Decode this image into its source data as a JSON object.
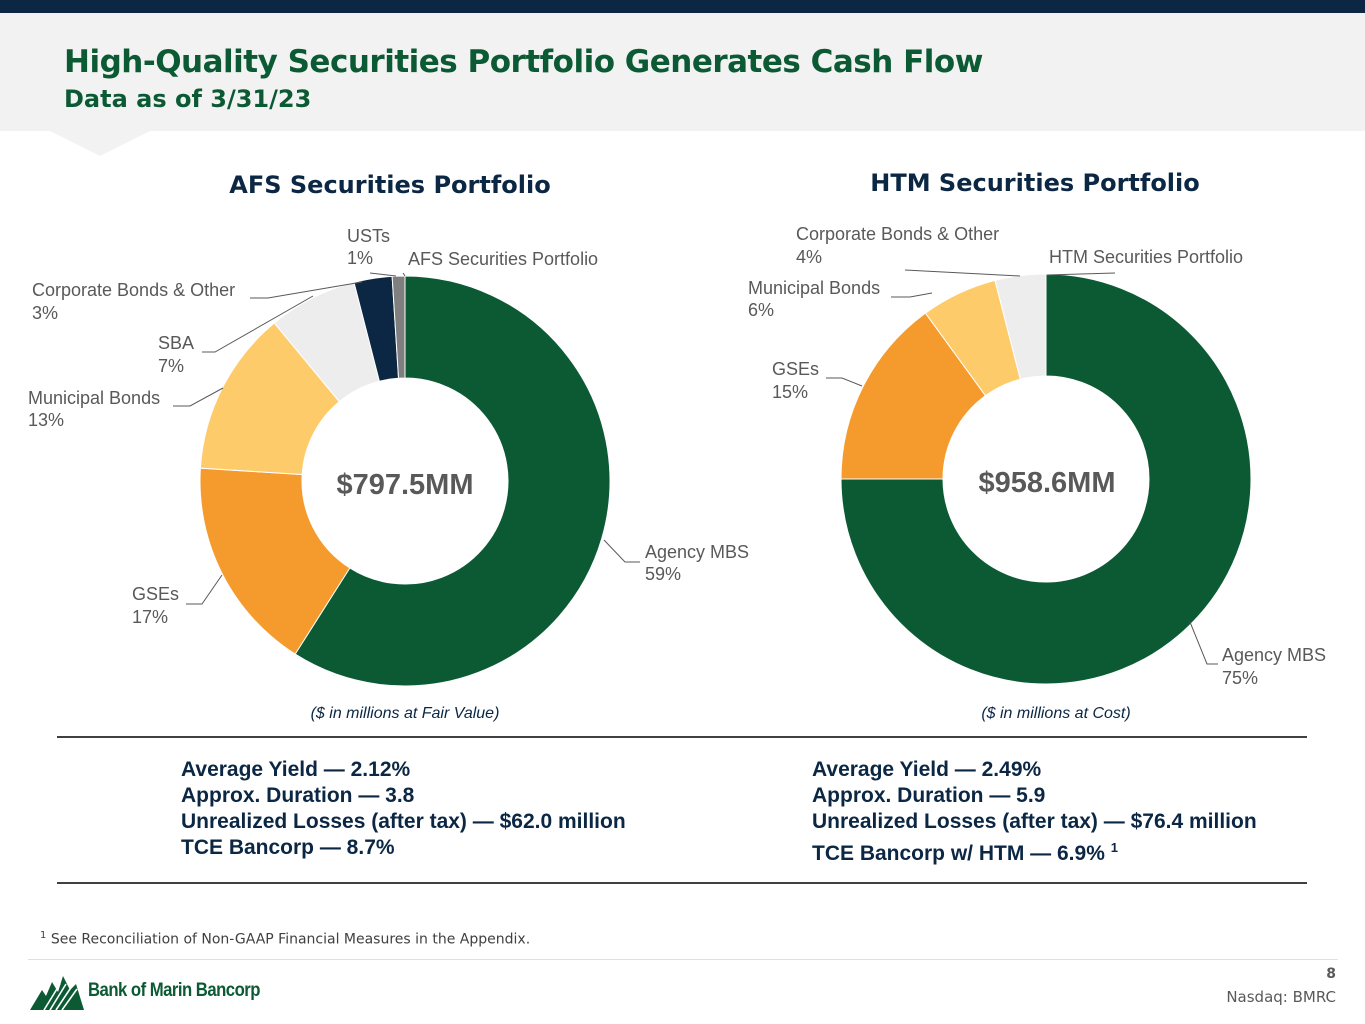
{
  "header": {
    "title": "High-Quality Securities Portfolio Generates Cash Flow",
    "subtitle": "Data as of 3/31/23"
  },
  "chart_data": [
    {
      "type": "pie",
      "title": "AFS Securities Portfolio",
      "series_label": "AFS Securities Portfolio",
      "center_label": "$797.5MM",
      "note": "($ in millions at Fair Value)",
      "categories": [
        "Agency MBS",
        "GSEs",
        "Municipal Bonds",
        "SBA",
        "Corporate Bonds & Other",
        "USTs"
      ],
      "values": [
        59,
        17,
        13,
        7,
        3,
        1
      ],
      "units": "%",
      "colors": [
        "#0b5a34",
        "#f59a2c",
        "#fecb6b",
        "#ededed",
        "#0b2744",
        "#7f7f7f"
      ]
    },
    {
      "type": "pie",
      "title": "HTM Securities Portfolio",
      "series_label": "HTM Securities Portfolio",
      "center_label": "$958.6MM",
      "note": "($ in millions at Cost)",
      "categories": [
        "Agency MBS",
        "GSEs",
        "Municipal Bonds",
        "Corporate Bonds & Other"
      ],
      "values": [
        75,
        15,
        6,
        4
      ],
      "units": "%",
      "colors": [
        "#0b5a34",
        "#f59a2c",
        "#fecb6b",
        "#ededed"
      ]
    }
  ],
  "afs_metrics": {
    "yield": "Average Yield — 2.12%",
    "duration": "Approx. Duration — 3.8",
    "losses": "Unrealized Losses (after tax) — $62.0 million",
    "tce": "TCE Bancorp — 8.7%"
  },
  "htm_metrics": {
    "yield": "Average Yield — 2.49%",
    "duration": "Approx. Duration — 5.9",
    "losses": "Unrealized Losses (after tax) — $76.4 million",
    "tce": "TCE Bancorp w/ HTM — 6.9%",
    "tce_footnote_ref": "1"
  },
  "footer": {
    "footnote_number": "1",
    "footnote_text": "See Reconciliation of Non-GAAP Financial Measures in the Appendix.",
    "logo_text": "Bank of Marin Bancorp",
    "page_number": "8",
    "ticker": "Nasdaq: BMRC"
  }
}
